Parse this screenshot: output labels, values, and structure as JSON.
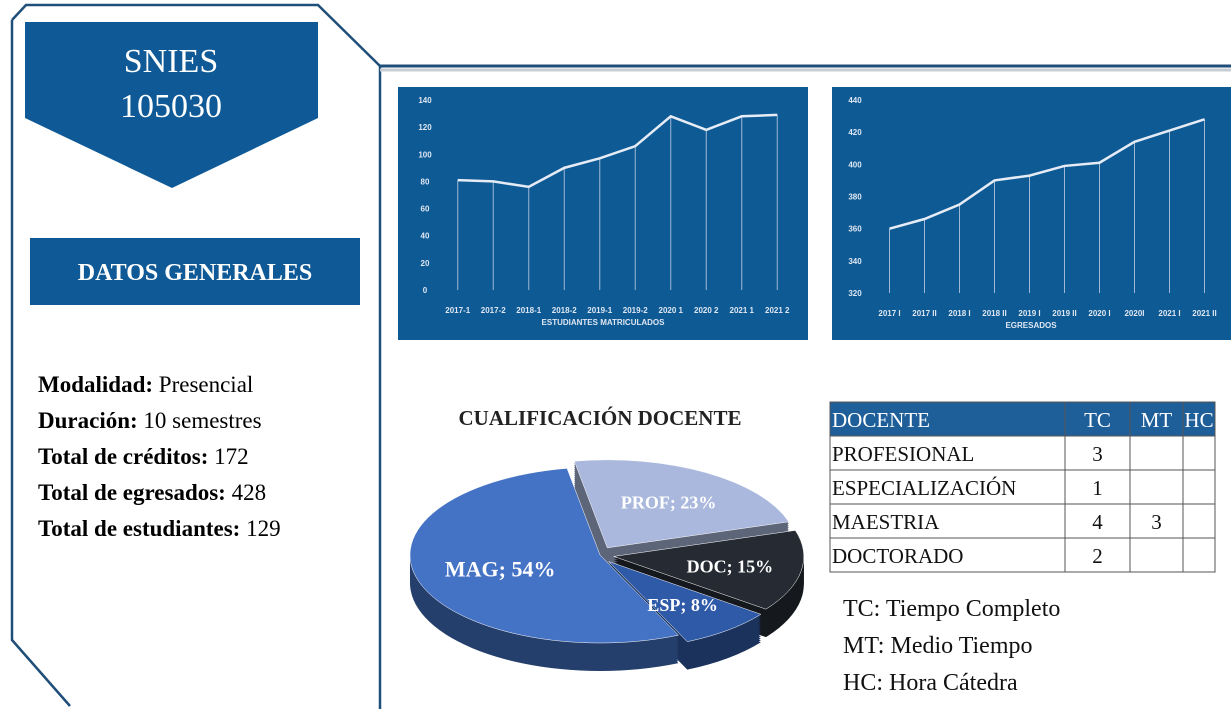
{
  "header": {
    "title": "SNIES",
    "code": "105030",
    "section": "DATOS GENERALES"
  },
  "info": [
    {
      "label": "Modalidad:",
      "value": "Presencial"
    },
    {
      "label": "Duración:",
      "value": "10 semestres"
    },
    {
      "label": "Total de créditos:",
      "value": 172
    },
    {
      "label": "Total de egresados:",
      "value": 428
    },
    {
      "label": "Total de estudiantes:",
      "value": 129
    }
  ],
  "chart_data": [
    {
      "type": "line",
      "x_label": "ESTUDIANTES MATRICULADOS",
      "categories": [
        "2017-1",
        "2017-2",
        "2018-1",
        "2018-2",
        "2019-1",
        "2019-2",
        "2020 1",
        "2020 2",
        "2021 1",
        "2021 2"
      ],
      "values": [
        81,
        80,
        76,
        90,
        97,
        106,
        128,
        118,
        128,
        129
      ],
      "color": "#e6ecf5",
      "ylim": [
        0,
        140
      ],
      "yticks": [
        0,
        20,
        40,
        60,
        80,
        100,
        120,
        140
      ]
    },
    {
      "type": "line",
      "x_label": "EGRESADOS",
      "categories": [
        "2017 I",
        "2017 II",
        "2018 I",
        "2018 II",
        "2019 I",
        "2019 II",
        "2020 I",
        "2020I",
        "2021 I",
        "2021 II"
      ],
      "values": [
        360,
        366,
        375,
        390,
        393,
        399,
        401,
        414,
        421,
        428
      ],
      "color": "#e6ecf5",
      "ylim": [
        320,
        440
      ],
      "yticks": [
        320,
        340,
        360,
        380,
        400,
        420,
        440
      ]
    },
    {
      "type": "pie",
      "title": "CUALIFICACIÓN DOCENTE",
      "categories": [
        "PROF",
        "DOC",
        "ESP",
        "MAG"
      ],
      "values": [
        23,
        15,
        8,
        54
      ],
      "value_labels": [
        "PROF; 23%",
        "DOC; 15%",
        "ESP; 8%",
        "MAG; 54%"
      ],
      "colors": [
        "#a9b8dc",
        "#262b33",
        "#2f5aa8",
        "#4472c4"
      ]
    }
  ],
  "table": {
    "header": [
      "DOCENTE",
      "TC",
      "MT",
      "HC"
    ],
    "rows": [
      [
        "PROFESIONAL",
        3,
        null,
        null
      ],
      [
        "ESPECIALIZACIÓN",
        1,
        null,
        null
      ],
      [
        "MAESTRIA",
        4,
        3,
        null
      ],
      [
        "DOCTORADO",
        2,
        null,
        null
      ]
    ]
  },
  "notes": [
    "TC: Tiempo Completo",
    "MT: Medio Tiempo",
    "HC: Hora Cátedra"
  ]
}
